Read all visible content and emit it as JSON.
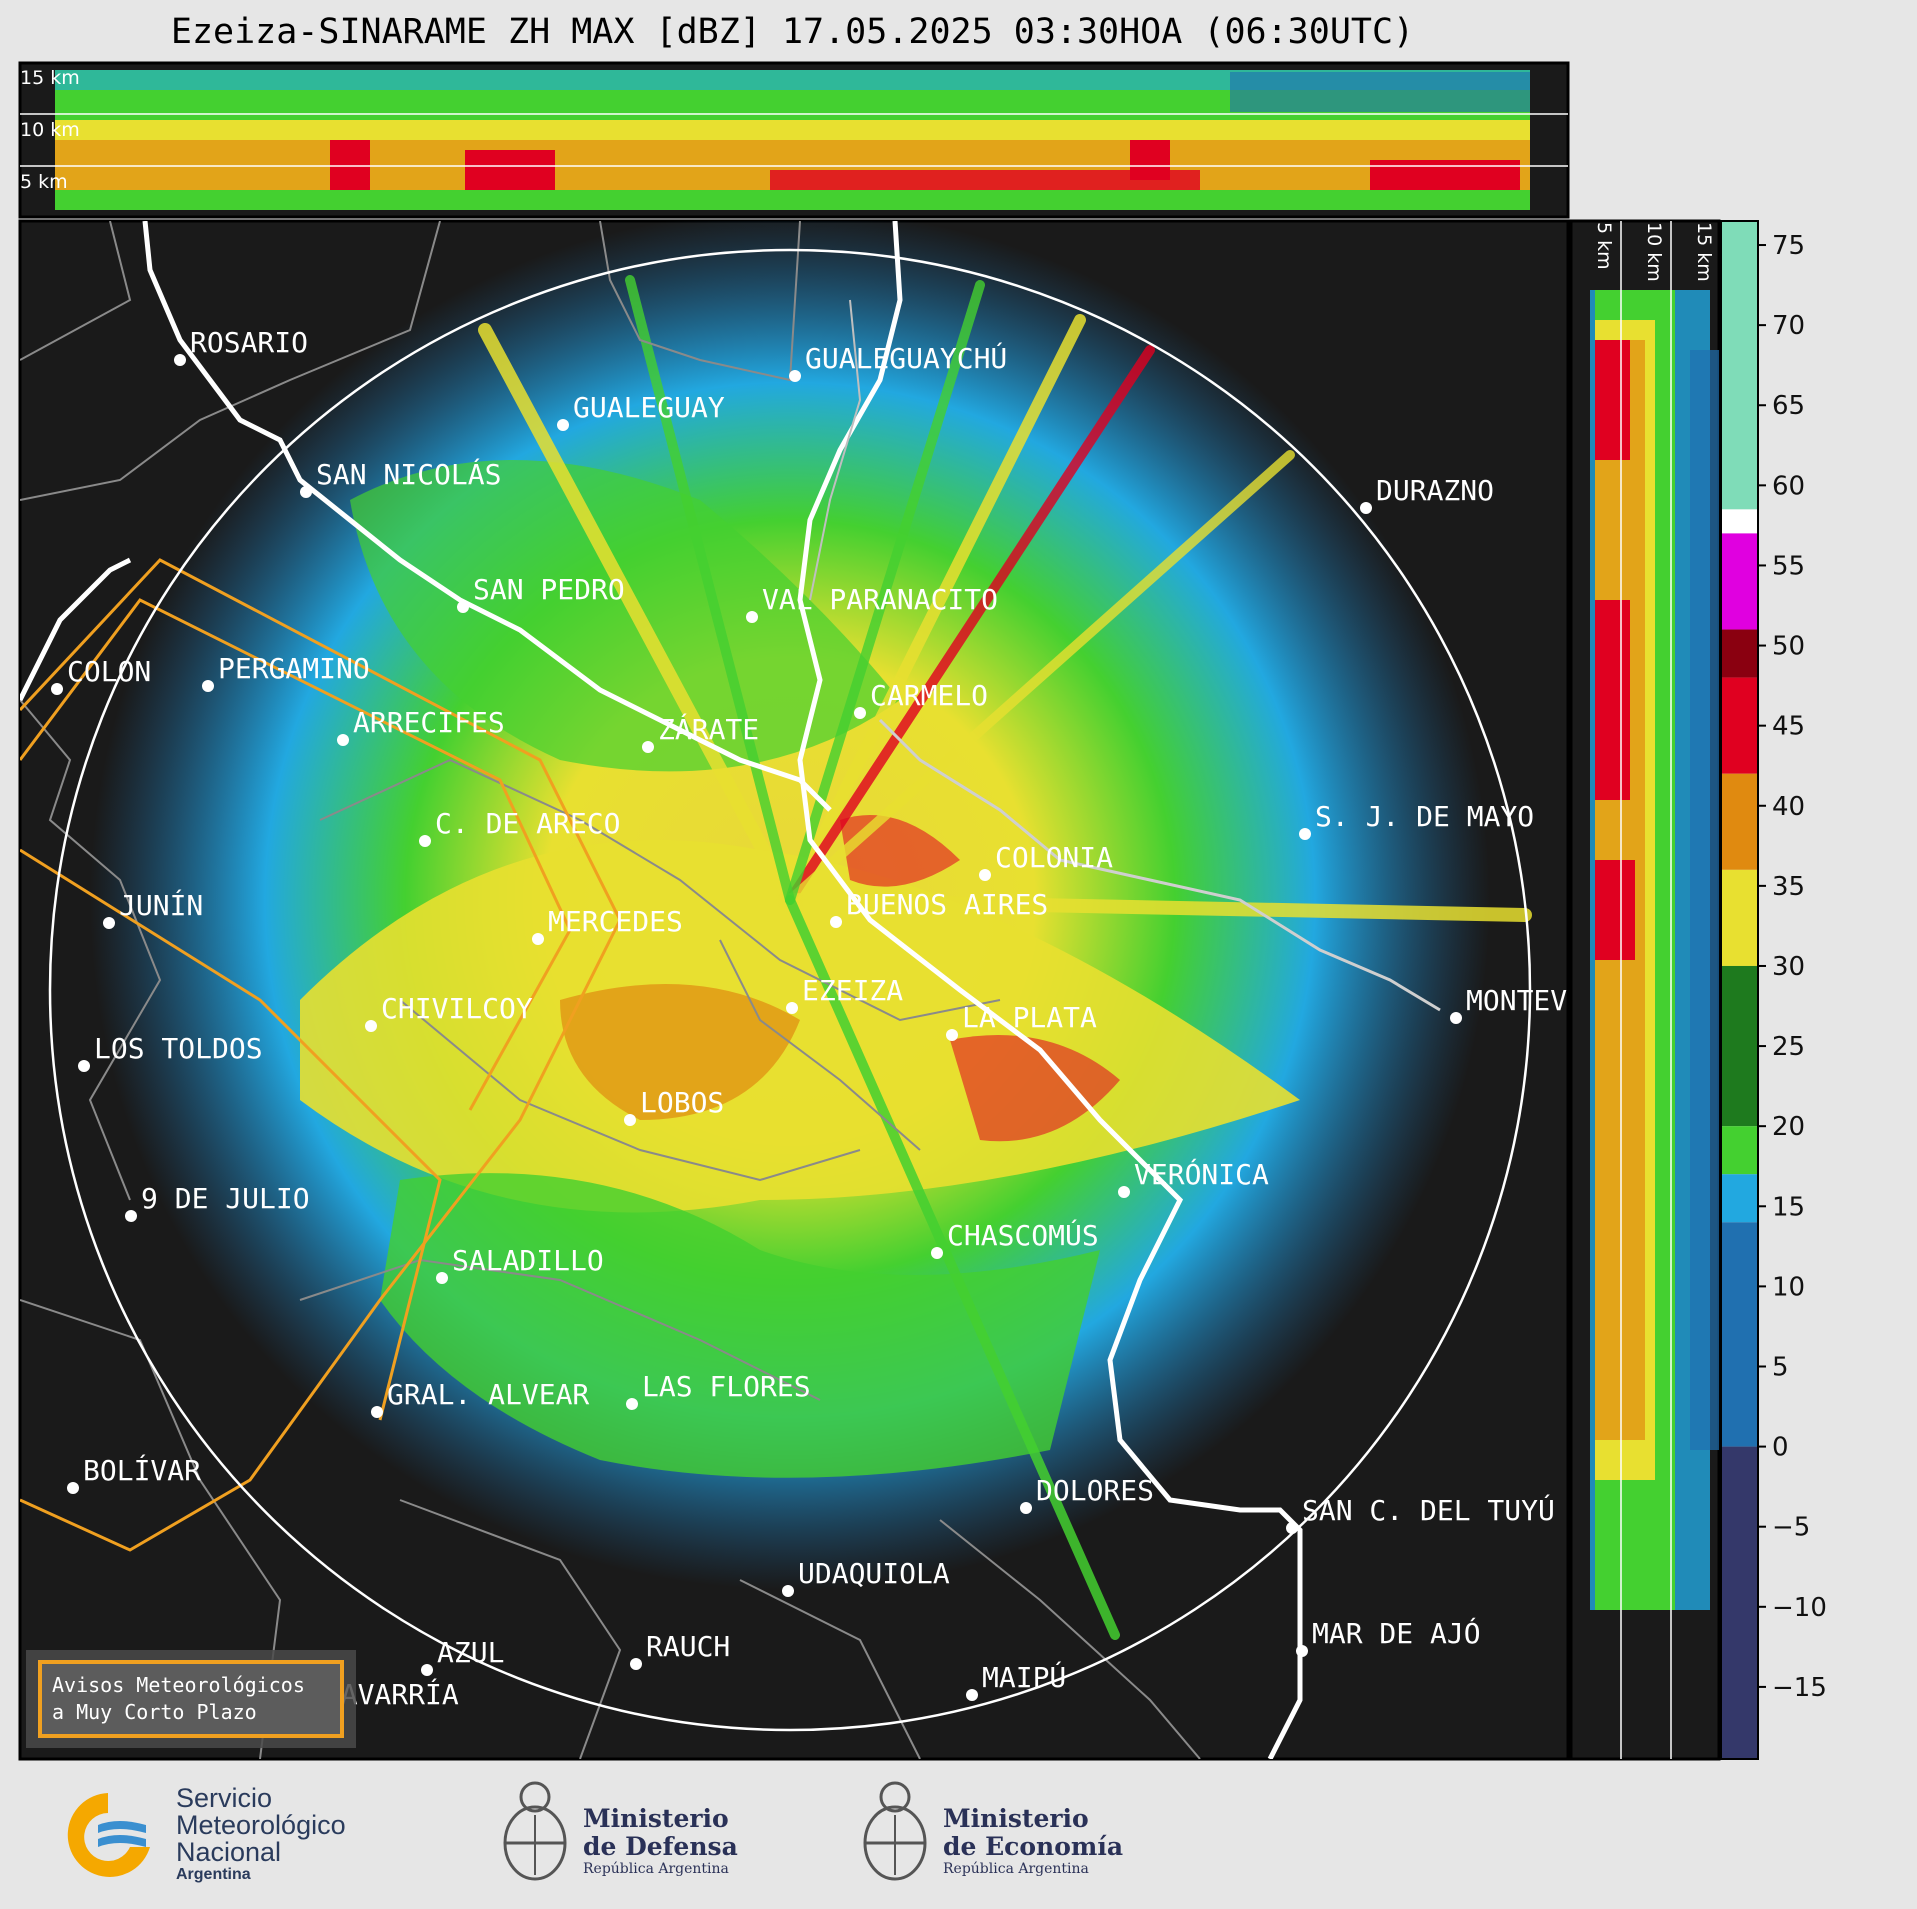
{
  "title": "Ezeiza-SINARAME ZH MAX [dBZ] 17.05.2025 03:30HOA (06:30UTC)",
  "top_panel": {
    "altitude_labels": [
      "15 km",
      "10 km",
      "5 km"
    ]
  },
  "side_panel": {
    "altitude_labels": [
      "5 km",
      "10 km",
      "15 km"
    ]
  },
  "cities": [
    {
      "name": "ROSARIO"
    },
    {
      "name": "GUALEGUAYCHÚ"
    },
    {
      "name": "GUALEGUAY"
    },
    {
      "name": "SAN NICOLÁS"
    },
    {
      "name": "DURAZNO"
    },
    {
      "name": "SAN PEDRO"
    },
    {
      "name": "VAL PARANACITO"
    },
    {
      "name": "COLON"
    },
    {
      "name": "PERGAMINO"
    },
    {
      "name": "CARMELO"
    },
    {
      "name": "ARRECIFES"
    },
    {
      "name": "ZÁRATE"
    },
    {
      "name": "S. J. DE MAYO"
    },
    {
      "name": "C. DE ARECO"
    },
    {
      "name": "COLONIA"
    },
    {
      "name": "JUNÍN"
    },
    {
      "name": "MERCEDES"
    },
    {
      "name": "BUENOS AIRES"
    },
    {
      "name": "EZEIZA"
    },
    {
      "name": "MONTEV"
    },
    {
      "name": "CHIVILCOY"
    },
    {
      "name": "LA PLATA"
    },
    {
      "name": "LOS TOLDOS"
    },
    {
      "name": "LOBOS"
    },
    {
      "name": "VERÓNICA"
    },
    {
      "name": "9 DE JULIO"
    },
    {
      "name": "CHASCOMÚS"
    },
    {
      "name": "SALADILLO"
    },
    {
      "name": "GRAL. ALVEAR"
    },
    {
      "name": "LAS FLORES"
    },
    {
      "name": "BOLÍVAR"
    },
    {
      "name": "DOLORES"
    },
    {
      "name": "SAN C. DEL TUYÚ"
    },
    {
      "name": "UDAQUIOLA"
    },
    {
      "name": "AZUL"
    },
    {
      "name": "RAUCH"
    },
    {
      "name": "MAR DE AJÓ"
    },
    {
      "name": "MAIPÚ"
    },
    {
      "name": "OLAVARRÍA"
    }
  ],
  "colorbar": {
    "unit": "dBZ",
    "ticks": [
      "75",
      "70",
      "65",
      "60",
      "55",
      "50",
      "45",
      "40",
      "35",
      "30",
      "25",
      "20",
      "15",
      "10",
      "5",
      "0",
      "−5",
      "−10",
      "−15"
    ],
    "colors": {
      "teal": "#7fdcb8",
      "white": "#ffffff",
      "magenta": "#e000e0",
      "darkred": "#8a0010",
      "red": "#e00020",
      "orange": "#e08a10",
      "yellow": "#e8e030",
      "darkgreen": "#1e7a1e",
      "green": "#44d030",
      "lightblue": "#22a8e0",
      "blue": "#2070b0",
      "navy": "#34386a"
    }
  },
  "legend": {
    "line1": "Avisos Meteorológicos",
    "line2": "a Muy Corto Plazo"
  },
  "logos": {
    "smn": {
      "line1": "Servicio",
      "line2": "Meteorológico",
      "line3": "Nacional",
      "line4": "Argentina"
    },
    "defensa": {
      "line1": "Ministerio",
      "line2": "de Defensa",
      "line3": "República Argentina"
    },
    "economia": {
      "line1": "Ministerio",
      "line2": "de Economía",
      "line3": "República Argentina"
    }
  }
}
